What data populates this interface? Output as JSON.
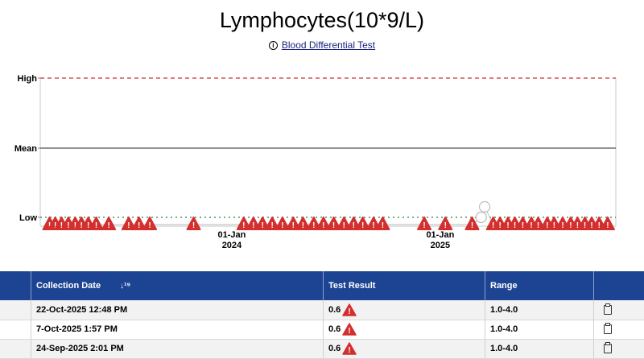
{
  "header": {
    "title": "Lymphocytes(10*9/L)",
    "subtitle_link": "Blood Differential Test",
    "info_icon": "info-icon"
  },
  "chart_data": {
    "type": "scatter",
    "y_reference_labels": [
      "High",
      "Mean",
      "Low"
    ],
    "x_tick_labels": [
      {
        "date": "2024-01-01",
        "line1": "01-Jan",
        "line2": "2024"
      },
      {
        "date": "2025-01-01",
        "line1": "01-Jan",
        "line2": "2025"
      }
    ],
    "xlim": [
      "2023-02-10",
      "2025-10-25"
    ],
    "ylim": [
      "below Low",
      "High"
    ],
    "series": [
      {
        "status": "low",
        "marker": "warning-triangle",
        "dates": [
          "2023-02-15",
          "2023-02-25",
          "2023-03-08",
          "2023-03-20",
          "2023-04-01",
          "2023-04-12",
          "2023-04-24",
          "2023-05-08",
          "2023-05-30",
          "2023-07-04",
          "2023-07-22",
          "2023-08-10",
          "2023-10-26",
          "2024-01-22",
          "2024-02-08",
          "2024-02-24",
          "2024-03-12",
          "2024-03-30",
          "2024-04-18",
          "2024-05-05",
          "2024-05-24",
          "2024-06-10",
          "2024-06-28",
          "2024-07-16",
          "2024-08-02",
          "2024-08-18",
          "2024-09-06",
          "2024-09-22",
          "2024-12-04",
          "2025-01-10",
          "2025-02-26",
          "2025-04-04",
          "2025-04-16",
          "2025-04-30",
          "2025-05-12",
          "2025-05-26",
          "2025-06-10",
          "2025-06-22",
          "2025-07-08",
          "2025-07-20",
          "2025-08-04",
          "2025-08-18",
          "2025-08-30",
          "2025-09-12",
          "2025-09-24",
          "2025-10-07",
          "2025-10-22"
        ]
      },
      {
        "status": "in-range",
        "marker": "circle",
        "dates": [
          "2025-03-14",
          "2025-03-20"
        ]
      }
    ],
    "grid": false,
    "legend": "none"
  },
  "table": {
    "headers": [
      "",
      "Collection Date",
      "Test Result",
      "Range",
      ""
    ],
    "sort_icon": "sort-icon",
    "rows": [
      {
        "date": "22-Oct-2025 12:48 PM",
        "result": "0.6",
        "range": "1.0-4.0"
      },
      {
        "date": "7-Oct-2025 1:57 PM",
        "result": "0.6",
        "range": "1.0-4.0"
      },
      {
        "date": "24-Sep-2025 2:01 PM",
        "result": "0.6",
        "range": "1.0-4.0"
      }
    ]
  }
}
